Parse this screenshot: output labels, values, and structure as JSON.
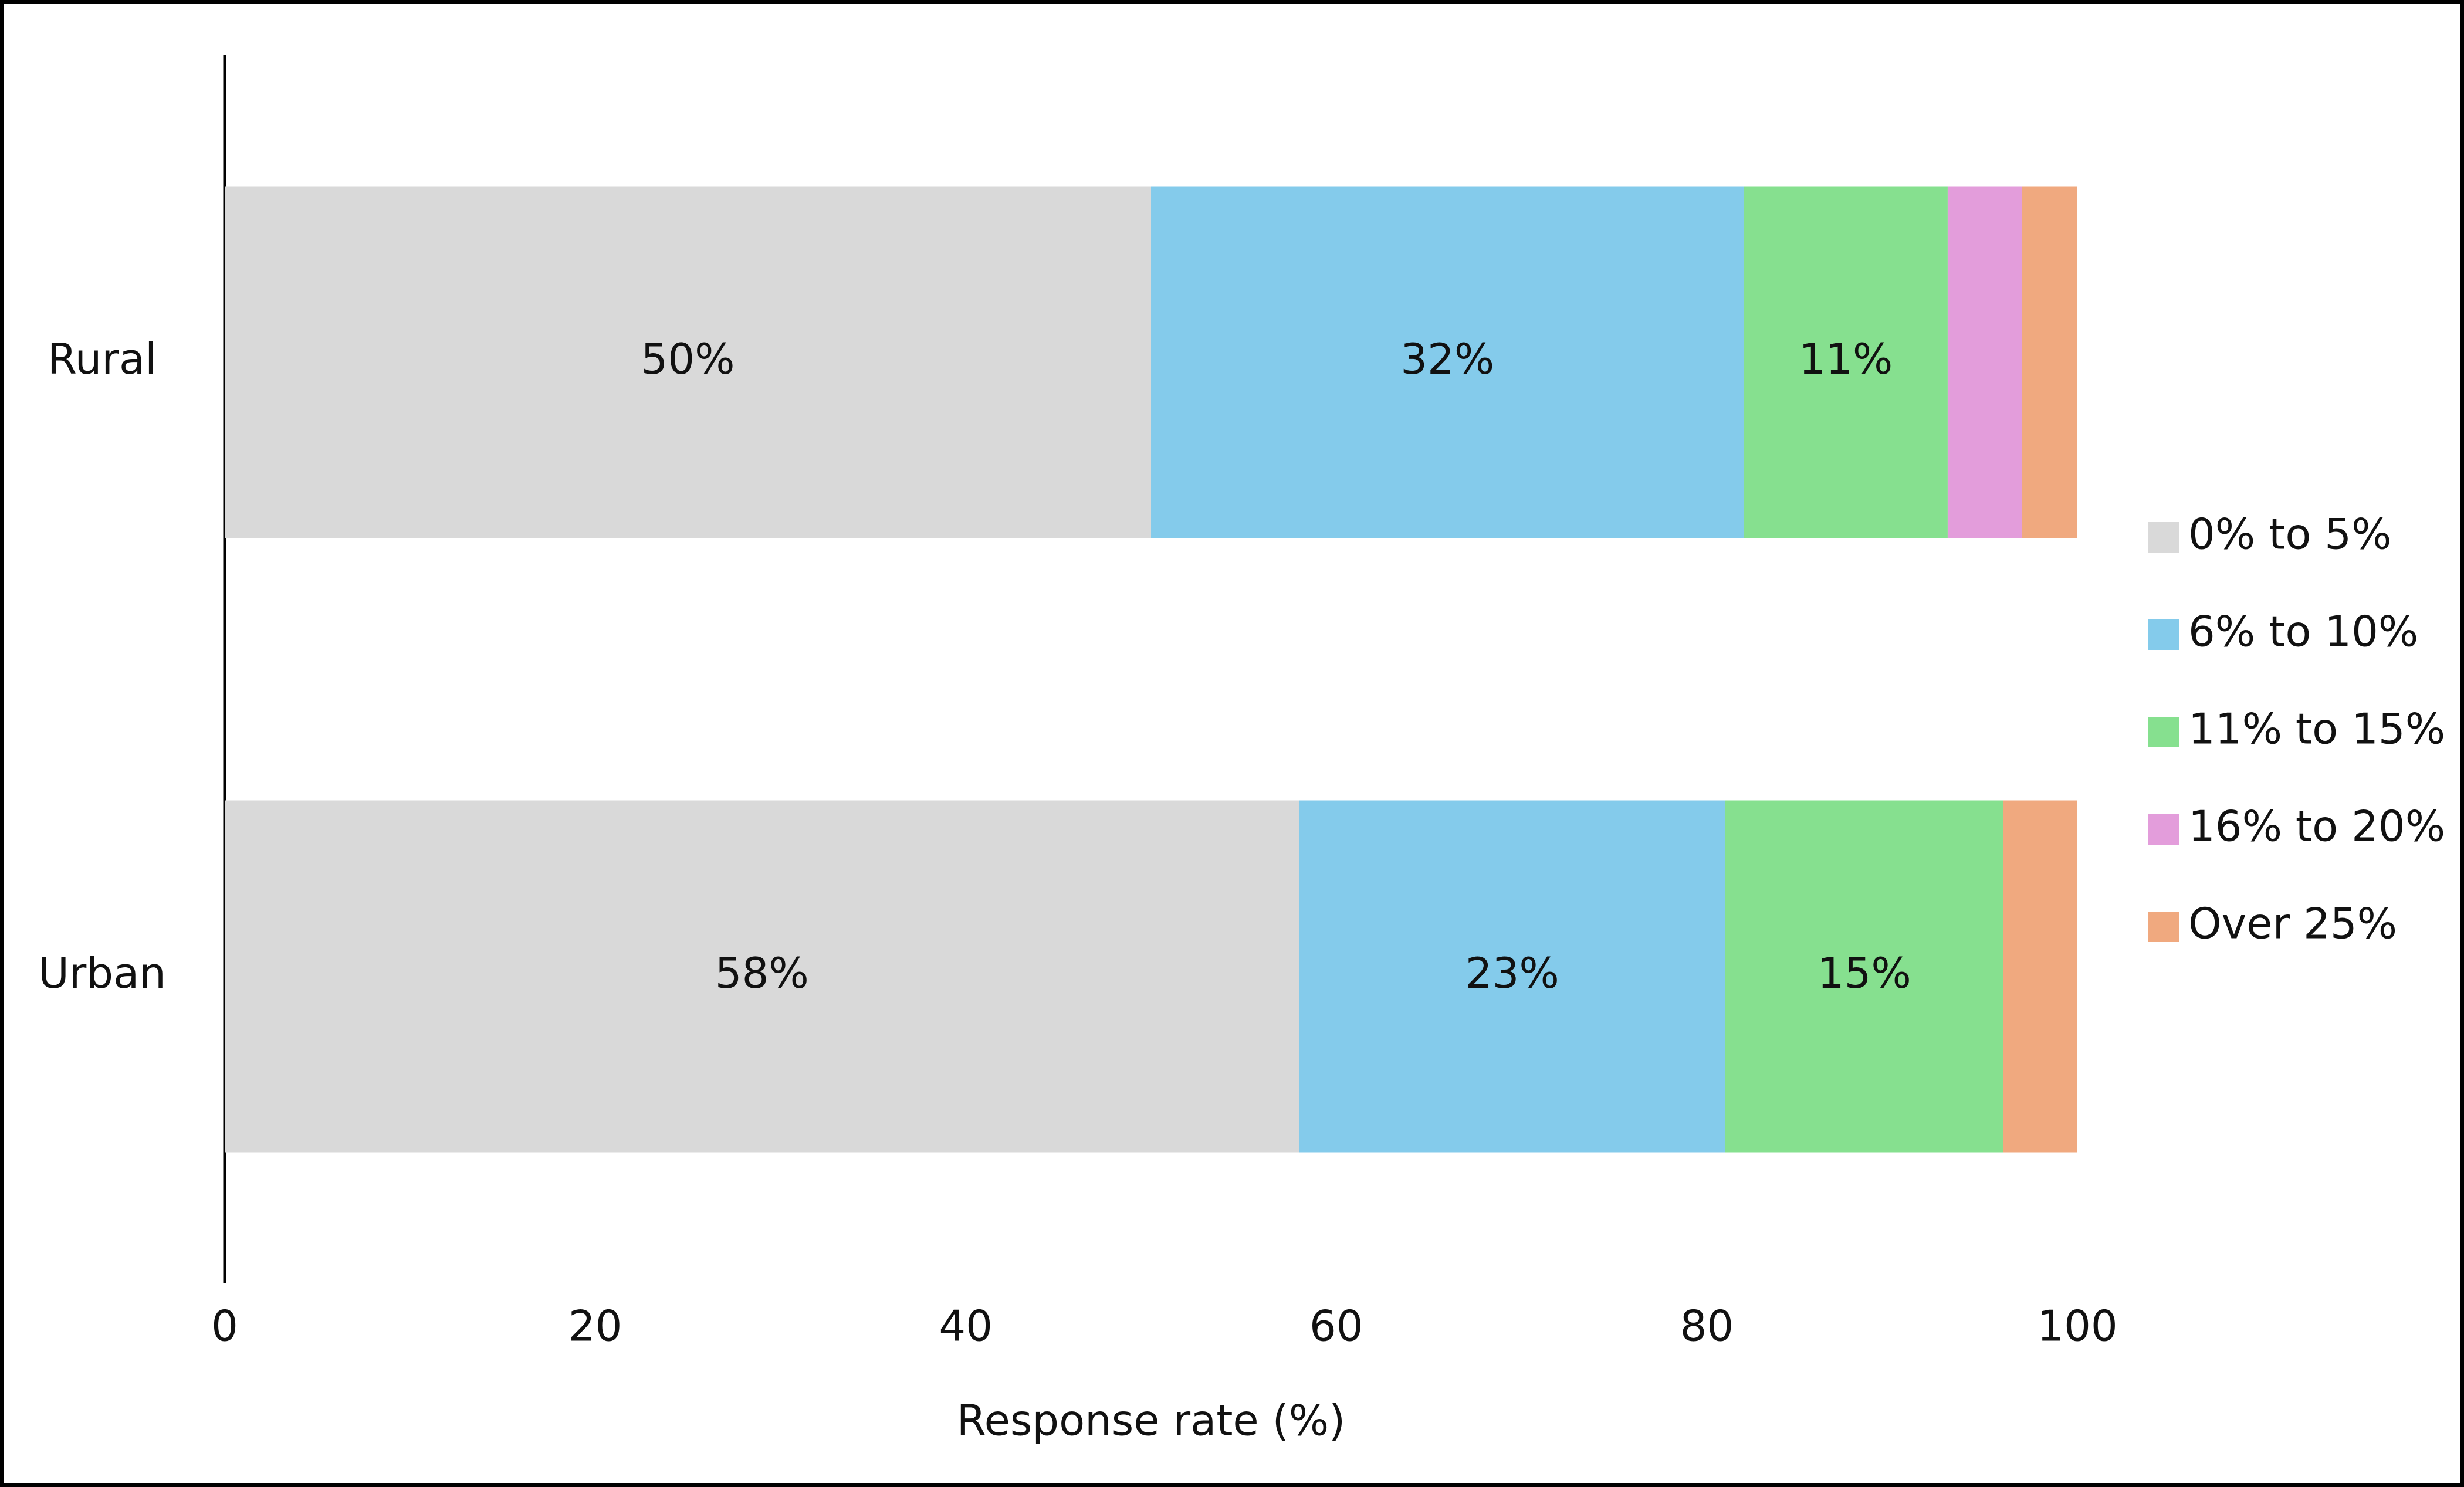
{
  "chart_data": {
    "type": "stacked-barh",
    "x_label": "Response rate (%)",
    "categories": [
      "Rural",
      "Urban"
    ],
    "series": [
      {
        "name": "0% to 5%",
        "color": "#d9d9d9",
        "values": [
          50,
          58
        ],
        "value_labels": [
          "50%",
          "58%"
        ]
      },
      {
        "name": "6% to 10%",
        "color": "#84cbeb",
        "values": [
          32,
          23
        ],
        "value_labels": [
          "32%",
          "23%"
        ]
      },
      {
        "name": "11% to 15%",
        "color": "#86e08f",
        "values": [
          11,
          15
        ],
        "value_labels": [
          "11%",
          "15%"
        ]
      },
      {
        "name": "16% to 20%",
        "color": "#e39ddb",
        "values": [
          4,
          0
        ]
      },
      {
        "name": "Over 25%",
        "color": "#f0a97f",
        "values": [
          3,
          4
        ]
      }
    ],
    "xlim": [
      0,
      100
    ],
    "xticks": [
      0,
      20,
      40,
      60,
      80,
      100
    ],
    "grid": false,
    "legend": "right"
  }
}
